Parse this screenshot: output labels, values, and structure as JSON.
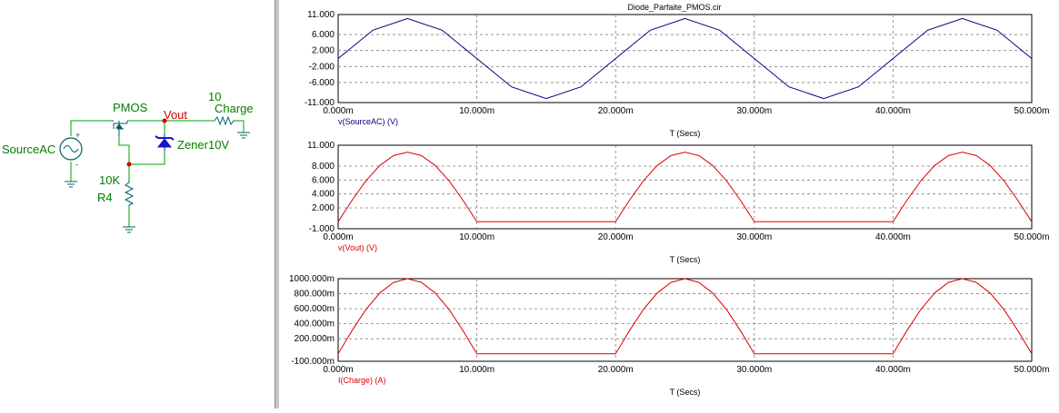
{
  "window": {
    "title": "Diode_Parfaite_PMOS.cir"
  },
  "colors": {
    "wire": "#00a000",
    "component": "#006060",
    "diode": "#1414c8",
    "net_label": "#d00000",
    "comp_label": "#008000",
    "trace_source": "#000080",
    "trace_output": "#dc0000",
    "grid": "#808080",
    "axis_text": "#000000"
  },
  "schematic": {
    "source_label": "SourceAC",
    "source_plus": "+",
    "source_minus": "-",
    "pmos_label": "PMOS",
    "vout_label": "Vout",
    "load_value": "10",
    "load_label": "Charge",
    "zener_label": "Zener10V",
    "resistor_value": "10K",
    "resistor_label": "R4"
  },
  "plots": {
    "x_title": "T (Secs)",
    "x_tick_labels": [
      "0.000m",
      "10.000m",
      "20.000m",
      "30.000m",
      "40.000m",
      "50.000m"
    ]
  },
  "chart_data": [
    {
      "type": "line",
      "title": "Diode_Parfaite_PMOS.cir",
      "xlabel": "T (Secs)",
      "ylabel": "",
      "xlim": [
        0,
        50
      ],
      "x_unit": "ms",
      "ylim": [
        -11,
        11
      ],
      "y_ticks": [
        11,
        6,
        2,
        -2,
        -6,
        -11
      ],
      "y_tick_labels": [
        "11.000",
        "6.000",
        "2.000",
        "-2.000",
        "-6.000",
        "-11.000"
      ],
      "grid": true,
      "legend": "v(SourceAC) (V)",
      "series": [
        {
          "name": "v(SourceAC) (V)",
          "color": "#000080",
          "x": [
            0,
            2.5,
            5,
            7.5,
            10,
            12.5,
            15,
            17.5,
            20,
            22.5,
            25,
            27.5,
            30,
            32.5,
            35,
            37.5,
            40,
            42.5,
            45,
            47.5,
            50
          ],
          "values": [
            0,
            7.07,
            10,
            7.07,
            0,
            -7.07,
            -10,
            -7.07,
            0,
            7.07,
            10,
            7.07,
            0,
            -7.07,
            -10,
            -7.07,
            0,
            7.07,
            10,
            7.07,
            0
          ]
        }
      ]
    },
    {
      "type": "line",
      "xlabel": "T (Secs)",
      "ylabel": "",
      "xlim": [
        0,
        50
      ],
      "x_unit": "ms",
      "ylim": [
        -1,
        11
      ],
      "y_ticks": [
        11,
        8,
        6,
        4,
        2,
        -1
      ],
      "y_tick_labels": [
        "11.000",
        "8.000",
        "6.000",
        "4.000",
        "2.000",
        "-1.000"
      ],
      "grid": true,
      "legend": "v(Vout) (V)",
      "series": [
        {
          "name": "v(Vout) (V)",
          "color": "#dc0000",
          "x": [
            0,
            1,
            2,
            3,
            4,
            5,
            6,
            7,
            8,
            9,
            10,
            20,
            21,
            22,
            23,
            24,
            25,
            26,
            27,
            28,
            29,
            30,
            40,
            41,
            42,
            43,
            44,
            45,
            46,
            47,
            48,
            49,
            50
          ],
          "values": [
            0,
            3.09,
            5.88,
            8.09,
            9.51,
            10,
            9.51,
            8.09,
            5.88,
            3.09,
            0,
            0,
            3.09,
            5.88,
            8.09,
            9.51,
            10,
            9.51,
            8.09,
            5.88,
            3.09,
            0,
            0,
            3.09,
            5.88,
            8.09,
            9.51,
            10,
            9.51,
            8.09,
            5.88,
            3.09,
            0
          ]
        }
      ]
    },
    {
      "type": "line",
      "xlabel": "T (Secs)",
      "ylabel": "",
      "xlim": [
        0,
        50
      ],
      "x_unit": "ms",
      "ylim": [
        -100,
        1000
      ],
      "y_ticks": [
        1000,
        800,
        600,
        400,
        200,
        -100
      ],
      "y_tick_labels": [
        "1000.000m",
        "800.000m",
        "600.000m",
        "400.000m",
        "200.000m",
        "-100.000m"
      ],
      "grid": true,
      "legend": "I(Charge) (A)",
      "series": [
        {
          "name": "I(Charge) (A)",
          "color": "#dc0000",
          "x": [
            0,
            1,
            2,
            3,
            4,
            5,
            6,
            7,
            8,
            9,
            10,
            20,
            21,
            22,
            23,
            24,
            25,
            26,
            27,
            28,
            29,
            30,
            40,
            41,
            42,
            43,
            44,
            45,
            46,
            47,
            48,
            49,
            50
          ],
          "values": [
            0,
            309,
            588,
            809,
            951,
            1000,
            951,
            809,
            588,
            309,
            0,
            0,
            309,
            588,
            809,
            951,
            1000,
            951,
            809,
            588,
            309,
            0,
            0,
            309,
            588,
            809,
            951,
            1000,
            951,
            809,
            588,
            309,
            0
          ]
        }
      ]
    }
  ]
}
